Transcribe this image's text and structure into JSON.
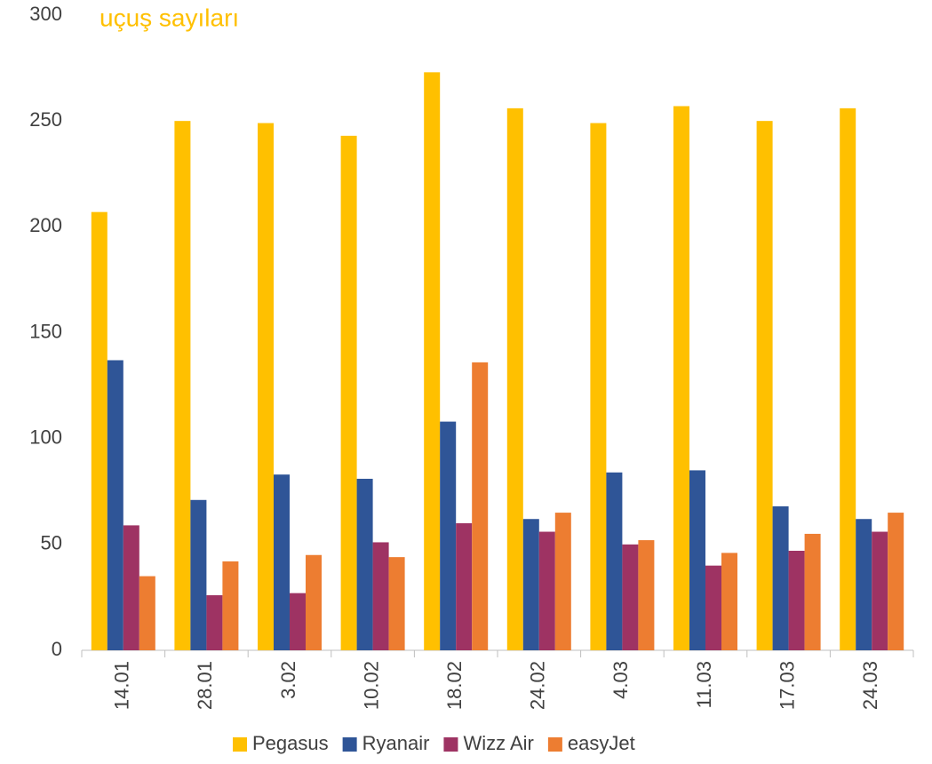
{
  "chart_data": {
    "type": "bar",
    "title": "uçuş sayıları",
    "categories": [
      "14.01",
      "28.01",
      "3.02",
      "10.02",
      "18.02",
      "24.02",
      "4.03",
      "11.03",
      "17.03",
      "24.03"
    ],
    "series": [
      {
        "name": "Pegasus",
        "color": "#FFC000",
        "values": [
          207,
          250,
          249,
          243,
          273,
          256,
          249,
          257,
          250,
          256
        ]
      },
      {
        "name": "Ryanair",
        "color": "#2F5597",
        "values": [
          137,
          71,
          83,
          81,
          108,
          62,
          84,
          85,
          68,
          62
        ]
      },
      {
        "name": "Wizz Air",
        "color": "#9E3363",
        "values": [
          59,
          26,
          27,
          51,
          60,
          56,
          50,
          40,
          47,
          56
        ]
      },
      {
        "name": "easyJet",
        "color": "#ED7D31",
        "values": [
          35,
          42,
          45,
          44,
          136,
          65,
          52,
          46,
          55,
          65
        ]
      }
    ],
    "ylim": [
      0,
      300
    ],
    "yticks": [
      0,
      50,
      100,
      150,
      200,
      250,
      300
    ],
    "grid": false,
    "legend": "bottom"
  }
}
